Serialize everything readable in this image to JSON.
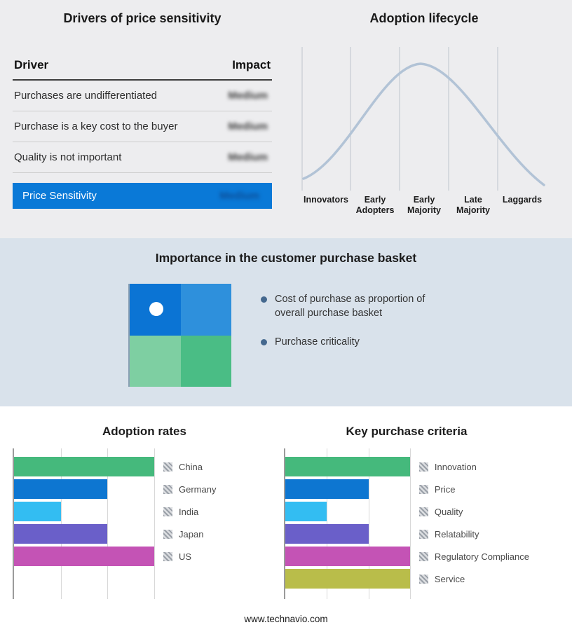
{
  "page": {
    "footer_url": "www.technavio.com",
    "background_top": "#ededef",
    "background_band": "#d9e2eb",
    "background_bottom": "#ffffff",
    "accent_blue": "#0a79d7"
  },
  "drivers": {
    "title": "Drivers of price sensitivity",
    "columns": {
      "driver": "Driver",
      "impact": "Impact"
    },
    "rows": [
      {
        "driver": "Purchases are undifferentiated",
        "impact": "Medium",
        "impact_blurred": true
      },
      {
        "driver": "Purchase is a key cost to the buyer",
        "impact": "Medium",
        "impact_blurred": true
      },
      {
        "driver": "Quality is not important",
        "impact": "Medium",
        "impact_blurred": true
      }
    ],
    "summary_row": {
      "label": "Price Sensitivity",
      "impact": "Medium",
      "impact_blurred": true,
      "background": "#0a79d7"
    }
  },
  "lifecycle": {
    "title": "Adoption lifecycle",
    "stages": [
      "Innovators",
      "Early Adopters",
      "Early Majority",
      "Late Majority",
      "Laggards"
    ],
    "curve_color": "#b2c3d6"
  },
  "basket": {
    "title": "Importance in the customer purchase basket",
    "bullets": [
      "Cost of purchase as proportion of overall purchase basket",
      "Purchase criticality"
    ],
    "quadrant_colors": [
      "#0b74d4",
      "#2e90dc",
      "#7ecfa2",
      "#4abd85"
    ],
    "marker": "white-dot-top-left-cell"
  },
  "chart_data": [
    {
      "type": "line",
      "title": "Adoption lifecycle",
      "x": [
        "Innovators",
        "Early Adopters",
        "Early Majority",
        "Late Majority",
        "Laggards"
      ],
      "y_relative": [
        0.07,
        0.55,
        1.0,
        0.55,
        0.05
      ],
      "shape": "bell curve peaking at Early Majority",
      "grid": "vertical stage separators",
      "line_color": "#b2c3d6"
    },
    {
      "type": "bar",
      "orientation": "horizontal",
      "title": "Adoption rates",
      "categories": [
        "China",
        "Germany",
        "India",
        "Japan",
        "US"
      ],
      "values": [
        3,
        2,
        1,
        2,
        3
      ],
      "xlim": [
        0,
        3
      ],
      "colors": [
        "#45b97c",
        "#0d76d1",
        "#33bdf2",
        "#6a5fc9",
        "#c453b5"
      ],
      "legend_position": "right",
      "note": "axis unlabeled; values estimated from gridlines"
    },
    {
      "type": "bar",
      "orientation": "horizontal",
      "title": "Key purchase criteria",
      "categories": [
        "Innovation",
        "Price",
        "Quality",
        "Relatability",
        "Regulatory Compliance",
        "Service"
      ],
      "values": [
        3,
        2,
        1,
        2,
        3,
        3
      ],
      "xlim": [
        0,
        3
      ],
      "colors": [
        "#45b97c",
        "#0d76d1",
        "#33bdf2",
        "#6a5fc9",
        "#c453b5",
        "#b9bd4a"
      ],
      "legend_position": "right",
      "note": "axis unlabeled; values estimated from gridlines"
    }
  ]
}
